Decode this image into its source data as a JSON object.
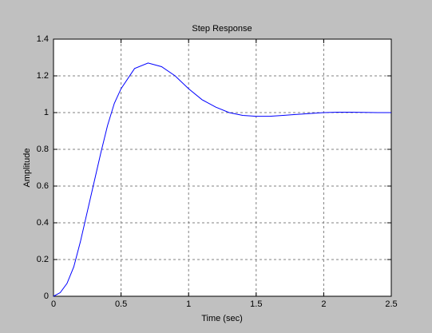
{
  "chart_data": {
    "type": "line",
    "title": "Step Response",
    "x_label": "Time (sec)",
    "y_label": "Amplitude",
    "x": [
      0,
      0.05,
      0.1,
      0.15,
      0.2,
      0.25,
      0.3,
      0.35,
      0.4,
      0.45,
      0.5,
      0.6,
      0.7,
      0.8,
      0.9,
      1.0,
      1.1,
      1.2,
      1.3,
      1.4,
      1.5,
      1.6,
      1.7,
      1.8,
      1.9,
      2.0,
      2.1,
      2.2,
      2.3,
      2.4,
      2.5
    ],
    "series": [
      {
        "name": "Step response",
        "color": "#0000ff",
        "values": [
          0,
          0.02,
          0.07,
          0.16,
          0.3,
          0.46,
          0.62,
          0.78,
          0.93,
          1.05,
          1.13,
          1.24,
          1.27,
          1.25,
          1.2,
          1.13,
          1.07,
          1.03,
          1.0,
          0.985,
          0.98,
          0.98,
          0.985,
          0.99,
          0.995,
          1.0,
          1.002,
          1.002,
          1.001,
          1.0,
          1.0
        ]
      }
    ],
    "xlim": [
      0,
      2.5
    ],
    "xticks": [
      0,
      0.5,
      1,
      1.5,
      2,
      2.5
    ],
    "ylim": [
      0,
      1.4
    ],
    "yticks": [
      0,
      0.2,
      0.4,
      0.6,
      0.8,
      1,
      1.2,
      1.4
    ],
    "grid": true
  }
}
